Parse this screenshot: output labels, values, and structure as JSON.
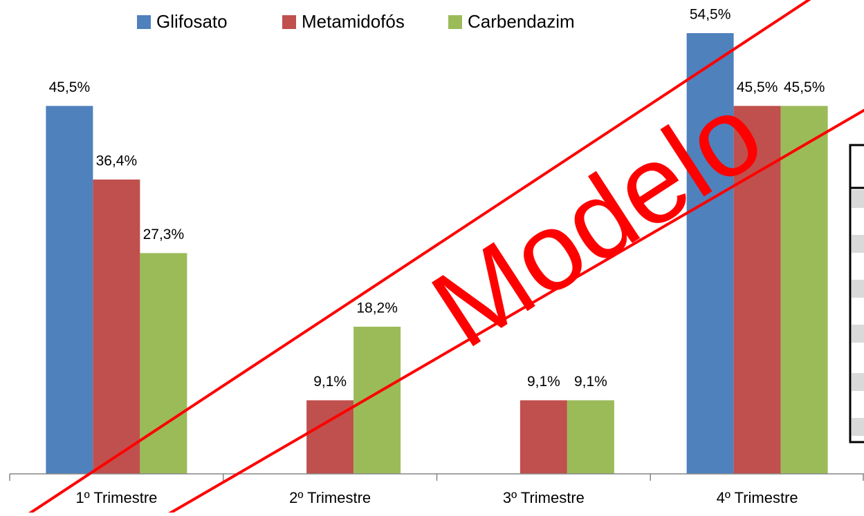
{
  "chart_data": {
    "type": "bar",
    "categories": [
      "1º Trimestre",
      "2º Trimestre",
      "3º Trimestre",
      "4º Trimestre"
    ],
    "series": [
      {
        "name": "Glifosato",
        "color": "#4f81bd",
        "values": [
          45.5,
          0,
          0,
          54.5
        ],
        "value_labels": [
          "45,5%",
          null,
          null,
          "54,5%"
        ]
      },
      {
        "name": "Metamidofós",
        "color": "#c0504d",
        "values": [
          36.4,
          9.1,
          9.1,
          45.5
        ],
        "value_labels": [
          "36,4%",
          "9,1%",
          "9,1%",
          "45,5%"
        ]
      },
      {
        "name": "Carbendazim",
        "color": "#9bbb59",
        "values": [
          27.3,
          18.2,
          9.1,
          45.5
        ],
        "value_labels": [
          "27,3%",
          "18,2%",
          "9,1%",
          "45,5%"
        ]
      }
    ],
    "ylim": [
      0,
      58
    ],
    "legend": "top",
    "watermark": "Modelo"
  }
}
